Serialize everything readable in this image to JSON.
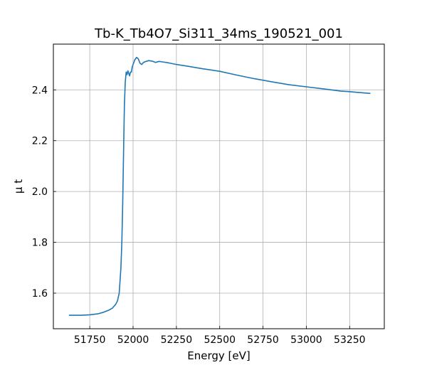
{
  "chart_data": {
    "type": "line",
    "title": "Tb-K_Tb4O7_Si311_34ms_190521_001",
    "xlabel": "Energy [eV]",
    "ylabel": "μ t",
    "xlim": [
      51540,
      53450
    ],
    "ylim": [
      1.46,
      2.58
    ],
    "xticks": [
      51750,
      52000,
      52250,
      52500,
      52750,
      53000,
      53250
    ],
    "yticks": [
      1.6,
      1.8,
      2.0,
      2.2,
      2.4
    ],
    "ytick_labels": [
      "1.6",
      "1.8",
      "2.0",
      "2.2",
      "2.4"
    ],
    "grid": true,
    "series": [
      {
        "color": "#1f77b4",
        "x": [
          51630,
          51700,
          51750,
          51800,
          51830,
          51860,
          51880,
          51900,
          51910,
          51920,
          51930,
          51935,
          51940,
          51945,
          51950,
          51955,
          51960,
          51965,
          51970,
          51975,
          51980,
          51985,
          51990,
          51995,
          52000,
          52010,
          52020,
          52030,
          52040,
          52050,
          52060,
          52075,
          52090,
          52110,
          52130,
          52150,
          52170,
          52200,
          52250,
          52300,
          52400,
          52500,
          52600,
          52700,
          52800,
          52900,
          53000,
          53100,
          53200,
          53250,
          53300,
          53370
        ],
        "y": [
          1.513,
          1.513,
          1.515,
          1.519,
          1.525,
          1.533,
          1.541,
          1.556,
          1.57,
          1.6,
          1.7,
          1.8,
          1.95,
          2.15,
          2.34,
          2.43,
          2.47,
          2.46,
          2.475,
          2.465,
          2.455,
          2.47,
          2.47,
          2.49,
          2.5,
          2.518,
          2.528,
          2.522,
          2.505,
          2.5,
          2.508,
          2.512,
          2.515,
          2.513,
          2.508,
          2.512,
          2.51,
          2.507,
          2.5,
          2.495,
          2.483,
          2.473,
          2.458,
          2.444,
          2.432,
          2.42,
          2.412,
          2.404,
          2.395,
          2.393,
          2.39,
          2.386
        ]
      }
    ]
  }
}
